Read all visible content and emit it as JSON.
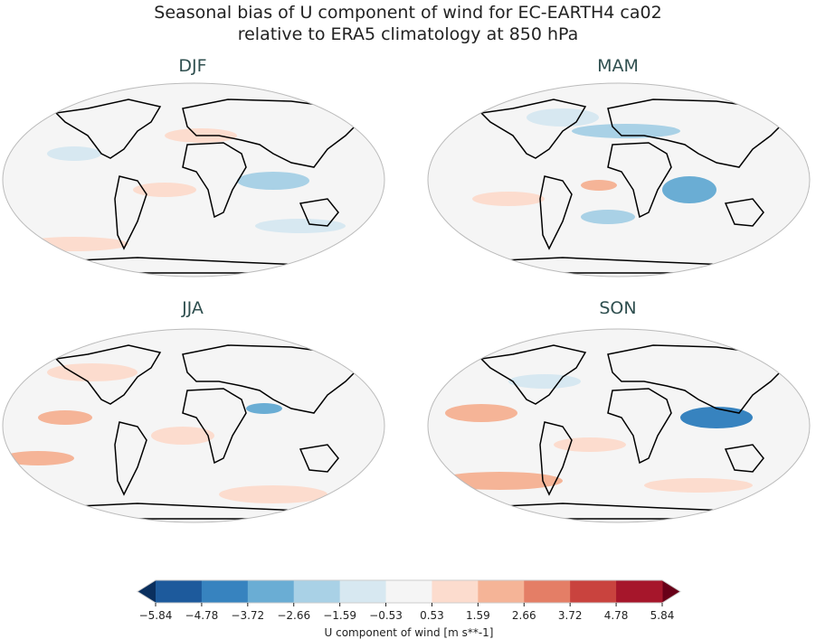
{
  "title_line1": "Seasonal bias of U component of wind for EC-EARTH4 ca02",
  "title_line2": "relative to ERA5 climatology at 850 hPa",
  "chart_data": {
    "type": "heatmap",
    "projection": "Robinson",
    "panels": [
      "DJF",
      "MAM",
      "JJA",
      "SON"
    ],
    "colorbar": {
      "label": "U component of wind [m s**-1]",
      "ticks": [
        "−5.84",
        "−4.78",
        "−3.72",
        "−2.66",
        "−1.59",
        "−0.53",
        "0.53",
        "1.59",
        "2.66",
        "3.72",
        "4.78",
        "5.84"
      ],
      "levels": [
        -5.84,
        -4.78,
        -3.72,
        -2.66,
        -1.59,
        -0.53,
        0.53,
        1.59,
        2.66,
        3.72,
        4.78,
        5.84
      ],
      "colors": [
        "#1d5a9c",
        "#3783bf",
        "#6aadd4",
        "#a9d1e6",
        "#d7e8f1",
        "#f5f5f5",
        "#fcdcce",
        "#f5b497",
        "#e47e66",
        "#c9433e",
        "#a6162b"
      ],
      "under_color": "#0a2f5e",
      "over_color": "#680018",
      "extend": "both"
    }
  }
}
